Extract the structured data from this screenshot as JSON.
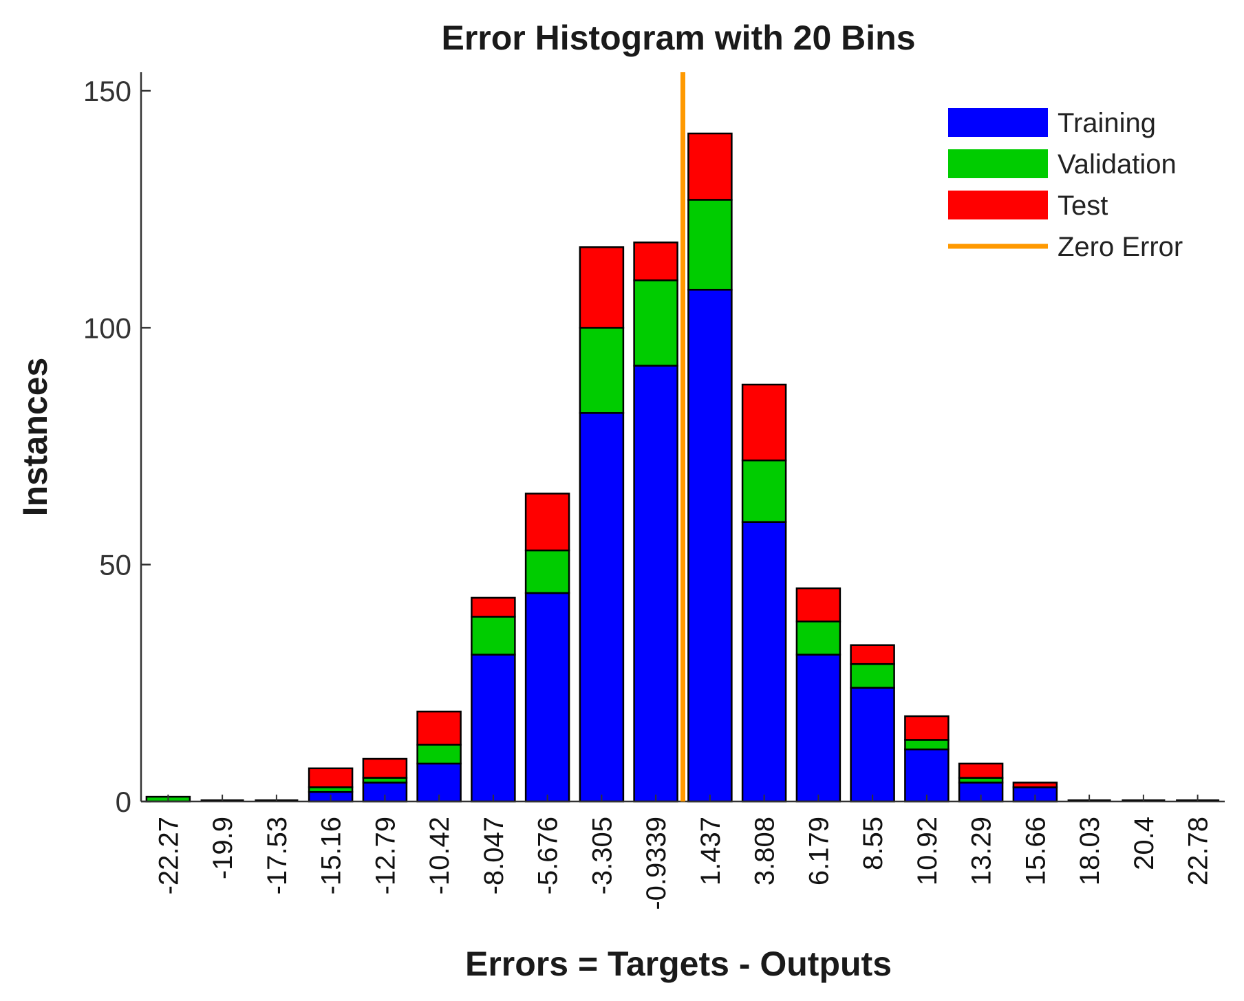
{
  "chart_data": {
    "type": "bar",
    "title": "Error Histogram with 20 Bins",
    "xlabel": "Errors = Targets - Outputs",
    "ylabel": "Instances",
    "ylim": [
      0,
      150
    ],
    "yticks": [
      "0",
      "50",
      "100",
      "150"
    ],
    "categories": [
      "-22.27",
      "-19.9",
      "-17.53",
      "-15.16",
      "-12.79",
      "-10.42",
      "-8.047",
      "-5.676",
      "-3.305",
      "-0.9339",
      "1.437",
      "3.808",
      "6.179",
      "8.55",
      "10.92",
      "13.29",
      "15.66",
      "18.03",
      "20.4",
      "22.78"
    ],
    "series": [
      {
        "name": "Training",
        "color": "#0000ff",
        "values": [
          0,
          0,
          0,
          2,
          4,
          8,
          31,
          44,
          82,
          92,
          108,
          59,
          31,
          24,
          11,
          4,
          3,
          0,
          0,
          0
        ]
      },
      {
        "name": "Validation",
        "color": "#00cc00",
        "values": [
          1,
          0,
          0,
          1,
          1,
          4,
          8,
          9,
          18,
          18,
          19,
          13,
          7,
          5,
          2,
          1,
          0,
          0,
          0,
          0
        ]
      },
      {
        "name": "Test",
        "color": "#ff0000",
        "values": [
          0,
          0,
          0,
          4,
          4,
          7,
          4,
          12,
          17,
          8,
          14,
          16,
          7,
          4,
          5,
          3,
          1,
          0,
          0,
          0
        ]
      }
    ],
    "zero_error": {
      "name": "Zero Error",
      "color": "#ff9900",
      "bin_index": 9.5
    },
    "legend_position": "top-right",
    "stacked": true,
    "grid": false
  }
}
